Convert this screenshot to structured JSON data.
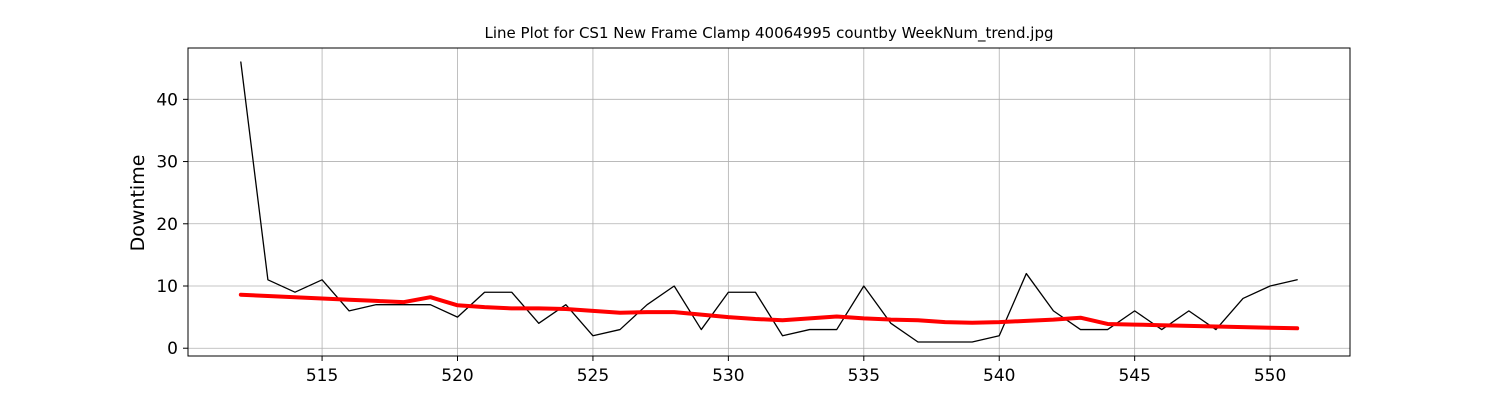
{
  "chart_data": {
    "type": "line",
    "title": "Line Plot for CS1 New Frame Clamp 40064995 countby WeekNum_trend.jpg",
    "xlabel": "",
    "ylabel": "Downtime",
    "xlim": [
      510.05,
      552.95
    ],
    "ylim": [
      -1.25,
      48.25
    ],
    "x_ticks": [
      515,
      520,
      525,
      530,
      535,
      540,
      545,
      550
    ],
    "y_ticks": [
      0,
      10,
      20,
      30,
      40
    ],
    "grid": true,
    "x": [
      512,
      513,
      514,
      515,
      516,
      517,
      518,
      519,
      520,
      521,
      522,
      523,
      524,
      525,
      526,
      527,
      528,
      529,
      530,
      531,
      532,
      533,
      534,
      535,
      536,
      537,
      538,
      539,
      540,
      541,
      542,
      543,
      544,
      545,
      546,
      547,
      548,
      549,
      550,
      551
    ],
    "series": [
      {
        "color": "#000000",
        "values": [
          46,
          11,
          9,
          11,
          6,
          7,
          7,
          7,
          5,
          9,
          9,
          4,
          7,
          2,
          3,
          7,
          10,
          3,
          9,
          9,
          2,
          3,
          3,
          10,
          4,
          1,
          1,
          1,
          2,
          12,
          6,
          3,
          3,
          6,
          3,
          6,
          3,
          8,
          10,
          11
        ]
      },
      {
        "color": "#ff0000",
        "values": [
          8.6,
          8.4,
          8.2,
          8.0,
          7.8,
          7.6,
          7.4,
          8.2,
          6.9,
          6.6,
          6.4,
          6.4,
          6.3,
          6.0,
          5.7,
          5.8,
          5.8,
          5.4,
          5.0,
          4.7,
          4.5,
          4.8,
          5.1,
          4.8,
          4.6,
          4.5,
          4.2,
          4.1,
          4.2,
          4.4,
          4.6,
          4.9,
          3.9,
          3.8,
          3.7,
          3.6,
          3.5,
          3.4,
          3.3,
          3.2
        ]
      }
    ]
  }
}
